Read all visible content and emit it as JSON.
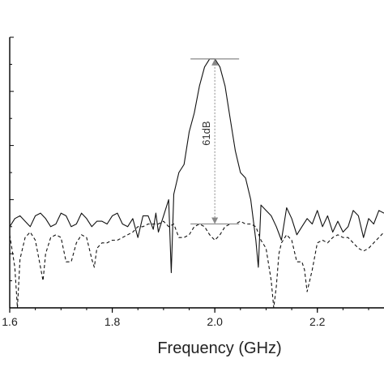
{
  "chart_data": {
    "type": "line",
    "xlabel": "Frequency (GHz)",
    "xticks": [
      "1.6",
      "1.8",
      "2.0",
      "2.2"
    ],
    "xtick_values": [
      1.6,
      1.8,
      2.0,
      2.2
    ],
    "xlim": [
      1.6,
      2.33
    ],
    "ylim": [
      0,
      100
    ],
    "ytick_values": [
      0,
      20,
      40,
      60,
      80,
      100
    ],
    "annotation": {
      "label": "61dB",
      "x": 2.0,
      "y_top": 92,
      "y_bottom": 31
    },
    "series": [
      {
        "style": "solid",
        "x": [
          1.6,
          1.61,
          1.62,
          1.63,
          1.64,
          1.65,
          1.66,
          1.67,
          1.68,
          1.69,
          1.7,
          1.71,
          1.72,
          1.73,
          1.74,
          1.75,
          1.76,
          1.77,
          1.78,
          1.79,
          1.8,
          1.81,
          1.82,
          1.83,
          1.84,
          1.85,
          1.86,
          1.87,
          1.88,
          1.885,
          1.89,
          1.9,
          1.91,
          1.915,
          1.92,
          1.93,
          1.94,
          1.95,
          1.96,
          1.97,
          1.98,
          1.99,
          2.0,
          2.01,
          2.02,
          2.03,
          2.04,
          2.05,
          2.06,
          2.07,
          2.08,
          2.085,
          2.09,
          2.1,
          2.11,
          2.12,
          2.13,
          2.14,
          2.15,
          2.16,
          2.17,
          2.18,
          2.19,
          2.2,
          2.21,
          2.22,
          2.23,
          2.24,
          2.25,
          2.26,
          2.27,
          2.28,
          2.29,
          2.3,
          2.31,
          2.32,
          2.33
        ],
        "values": [
          30,
          33,
          34,
          32,
          30,
          34,
          35,
          33,
          30,
          31,
          35,
          34,
          30,
          31,
          35,
          33,
          30,
          32,
          32,
          31,
          34,
          35,
          31,
          30,
          33,
          26,
          34,
          34,
          29,
          35,
          28,
          34,
          40,
          13,
          42,
          50,
          53,
          65,
          72,
          82,
          89,
          92,
          92,
          89,
          82,
          70,
          58,
          50,
          48,
          40,
          25,
          15,
          38,
          36,
          34,
          30,
          25,
          37,
          33,
          27,
          30,
          33,
          31,
          36,
          30,
          34,
          28,
          32,
          28,
          30,
          36,
          34,
          26,
          33,
          31,
          36,
          35
        ]
      },
      {
        "style": "dashed",
        "x": [
          1.6,
          1.61,
          1.615,
          1.62,
          1.63,
          1.64,
          1.65,
          1.66,
          1.665,
          1.67,
          1.68,
          1.69,
          1.7,
          1.71,
          1.72,
          1.73,
          1.74,
          1.75,
          1.76,
          1.765,
          1.77,
          1.78,
          1.79,
          1.8,
          1.81,
          1.82,
          1.83,
          1.84,
          1.85,
          1.86,
          1.87,
          1.88,
          1.89,
          1.9,
          1.91,
          1.92,
          1.93,
          1.94,
          1.95,
          1.96,
          1.97,
          1.98,
          1.99,
          2.0,
          2.01,
          2.02,
          2.03,
          2.04,
          2.05,
          2.06,
          2.07,
          2.08,
          2.09,
          2.1,
          2.11,
          2.115,
          2.12,
          2.125,
          2.13,
          2.14,
          2.15,
          2.16,
          2.17,
          2.175,
          2.18,
          2.19,
          2.2,
          2.21,
          2.22,
          2.23,
          2.24,
          2.25,
          2.26,
          2.27,
          2.28,
          2.29,
          2.3,
          2.31,
          2.32,
          2.33
        ],
        "values": [
          27,
          15,
          0,
          18,
          26,
          28,
          25,
          15,
          10,
          20,
          26,
          27,
          26,
          17,
          17,
          24,
          27,
          26,
          18,
          15,
          22,
          24,
          24,
          25,
          25,
          26,
          27,
          28,
          30,
          30,
          31,
          31,
          31,
          32,
          30,
          31,
          26,
          26,
          27,
          30,
          31,
          30,
          27,
          25,
          27,
          30,
          31,
          31,
          32,
          31,
          31,
          30,
          25,
          22,
          10,
          0,
          8,
          20,
          24,
          27,
          25,
          17,
          17,
          14,
          6,
          14,
          24,
          25,
          24,
          26,
          27,
          26,
          26,
          24,
          22,
          21,
          22,
          24,
          26,
          28
        ]
      }
    ]
  }
}
